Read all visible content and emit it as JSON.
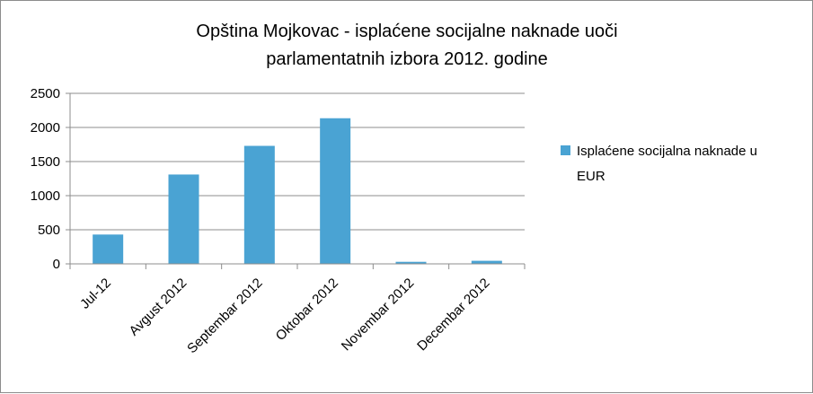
{
  "chart_data": {
    "type": "bar",
    "title_lines": [
      "Opština Mojkovac - isplaćene socijalne naknade uoči",
      "parlamentatnih izbora 2012. godine"
    ],
    "categories": [
      "Jul-12",
      "Avgust 2012",
      "Septembar 2012",
      "Oktobar 2012",
      "Novembar 2012",
      "Decembar 2012"
    ],
    "series": [
      {
        "name": "Isplaćene socijalna naknade u EUR",
        "legend_lines": [
          "Isplaćene socijalna naknade u",
          "EUR"
        ],
        "color": "#4aa3d3",
        "values": [
          430,
          1310,
          1730,
          2135,
          30,
          45
        ]
      }
    ],
    "yticks": [
      "0",
      "500",
      "1000",
      "1500",
      "2000",
      "2500"
    ],
    "ylim": [
      0,
      2500
    ],
    "grid": true,
    "legend_position": "right"
  }
}
